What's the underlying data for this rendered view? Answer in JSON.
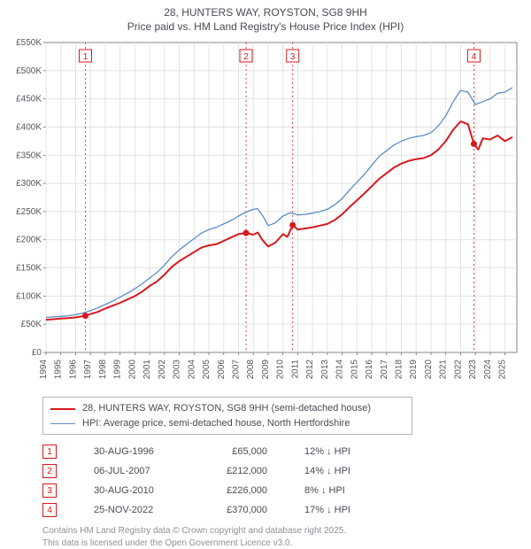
{
  "title_line1": "28, HUNTERS WAY, ROYSTON, SG8 9HH",
  "title_line2": "Price paid vs. HM Land Registry's House Price Index (HPI)",
  "chart": {
    "type": "line",
    "background_color": "#ffffff",
    "plot_bg": "#ffffff",
    "grid_color": "#e3e3e3",
    "axis_color": "#666670",
    "x_years": [
      1994,
      1995,
      1996,
      1997,
      1998,
      1999,
      2000,
      2001,
      2002,
      2003,
      2004,
      2005,
      2006,
      2007,
      2008,
      2009,
      2010,
      2011,
      2012,
      2013,
      2014,
      2015,
      2016,
      2017,
      2018,
      2019,
      2020,
      2021,
      2022,
      2023,
      2024,
      2025
    ],
    "ylim": [
      0,
      550000
    ],
    "ytick_step": 50000,
    "ytick_labels": [
      "£0",
      "£50K",
      "£100K",
      "£150K",
      "£200K",
      "£250K",
      "£300K",
      "£350K",
      "£400K",
      "£450K",
      "£500K",
      "£550K"
    ],
    "series": [
      {
        "name": "property",
        "label": "28, HUNTERS WAY, ROYSTON, SG8 9HH (semi-detached house)",
        "color": "#d7191c",
        "line_width": 2,
        "data": [
          [
            1994.0,
            58000
          ],
          [
            1994.5,
            59000
          ],
          [
            1995.0,
            60000
          ],
          [
            1995.5,
            61000
          ],
          [
            1996.0,
            62000
          ],
          [
            1996.66,
            65000
          ],
          [
            1997.0,
            68000
          ],
          [
            1997.5,
            72000
          ],
          [
            1998.0,
            78000
          ],
          [
            1998.5,
            83000
          ],
          [
            1999.0,
            88000
          ],
          [
            1999.5,
            94000
          ],
          [
            2000.0,
            100000
          ],
          [
            2000.5,
            108000
          ],
          [
            2001.0,
            118000
          ],
          [
            2001.5,
            126000
          ],
          [
            2002.0,
            138000
          ],
          [
            2002.5,
            152000
          ],
          [
            2003.0,
            162000
          ],
          [
            2003.5,
            170000
          ],
          [
            2004.0,
            178000
          ],
          [
            2004.5,
            186000
          ],
          [
            2005.0,
            190000
          ],
          [
            2005.5,
            192000
          ],
          [
            2006.0,
            198000
          ],
          [
            2006.5,
            204000
          ],
          [
            2007.0,
            210000
          ],
          [
            2007.51,
            212000
          ],
          [
            2008.0,
            209000
          ],
          [
            2008.3,
            213000
          ],
          [
            2008.6,
            200000
          ],
          [
            2009.0,
            188000
          ],
          [
            2009.5,
            195000
          ],
          [
            2010.0,
            210000
          ],
          [
            2010.3,
            205000
          ],
          [
            2010.66,
            226000
          ],
          [
            2011.0,
            218000
          ],
          [
            2011.5,
            220000
          ],
          [
            2012.0,
            222000
          ],
          [
            2012.5,
            225000
          ],
          [
            2013.0,
            228000
          ],
          [
            2013.5,
            235000
          ],
          [
            2014.0,
            245000
          ],
          [
            2014.5,
            258000
          ],
          [
            2015.0,
            270000
          ],
          [
            2015.5,
            282000
          ],
          [
            2016.0,
            295000
          ],
          [
            2016.5,
            308000
          ],
          [
            2017.0,
            318000
          ],
          [
            2017.5,
            328000
          ],
          [
            2018.0,
            335000
          ],
          [
            2018.5,
            340000
          ],
          [
            2019.0,
            343000
          ],
          [
            2019.5,
            345000
          ],
          [
            2020.0,
            350000
          ],
          [
            2020.5,
            360000
          ],
          [
            2021.0,
            375000
          ],
          [
            2021.5,
            395000
          ],
          [
            2022.0,
            410000
          ],
          [
            2022.5,
            405000
          ],
          [
            2022.9,
            370000
          ],
          [
            2023.2,
            360000
          ],
          [
            2023.5,
            380000
          ],
          [
            2024.0,
            378000
          ],
          [
            2024.5,
            385000
          ],
          [
            2025.0,
            375000
          ],
          [
            2025.5,
            382000
          ]
        ],
        "markers_at": [
          [
            1996.66,
            65000
          ],
          [
            2007.51,
            212000
          ],
          [
            2010.66,
            226000
          ],
          [
            2022.9,
            370000
          ]
        ]
      },
      {
        "name": "hpi",
        "label": "HPI: Average price, semi-detached house, North Hertfordshire",
        "color": "#5b8dc8",
        "line_width": 1.3,
        "data": [
          [
            1994.0,
            62000
          ],
          [
            1994.5,
            63000
          ],
          [
            1995.0,
            64000
          ],
          [
            1995.5,
            65000
          ],
          [
            1996.0,
            67000
          ],
          [
            1996.5,
            70000
          ],
          [
            1997.0,
            74000
          ],
          [
            1997.5,
            79000
          ],
          [
            1998.0,
            85000
          ],
          [
            1998.5,
            91000
          ],
          [
            1999.0,
            98000
          ],
          [
            1999.5,
            105000
          ],
          [
            2000.0,
            113000
          ],
          [
            2000.5,
            122000
          ],
          [
            2001.0,
            132000
          ],
          [
            2001.5,
            142000
          ],
          [
            2002.0,
            155000
          ],
          [
            2002.5,
            170000
          ],
          [
            2003.0,
            182000
          ],
          [
            2003.5,
            192000
          ],
          [
            2004.0,
            202000
          ],
          [
            2004.5,
            212000
          ],
          [
            2005.0,
            218000
          ],
          [
            2005.5,
            222000
          ],
          [
            2006.0,
            228000
          ],
          [
            2006.5,
            234000
          ],
          [
            2007.0,
            242000
          ],
          [
            2007.5,
            249000
          ],
          [
            2008.0,
            254000
          ],
          [
            2008.3,
            255000
          ],
          [
            2008.7,
            240000
          ],
          [
            2009.0,
            225000
          ],
          [
            2009.5,
            230000
          ],
          [
            2010.0,
            242000
          ],
          [
            2010.5,
            248000
          ],
          [
            2011.0,
            244000
          ],
          [
            2011.5,
            245000
          ],
          [
            2012.0,
            247000
          ],
          [
            2012.5,
            250000
          ],
          [
            2013.0,
            254000
          ],
          [
            2013.5,
            262000
          ],
          [
            2014.0,
            273000
          ],
          [
            2014.5,
            288000
          ],
          [
            2015.0,
            302000
          ],
          [
            2015.5,
            316000
          ],
          [
            2016.0,
            332000
          ],
          [
            2016.5,
            348000
          ],
          [
            2017.0,
            358000
          ],
          [
            2017.5,
            368000
          ],
          [
            2018.0,
            375000
          ],
          [
            2018.5,
            380000
          ],
          [
            2019.0,
            383000
          ],
          [
            2019.5,
            385000
          ],
          [
            2020.0,
            390000
          ],
          [
            2020.5,
            402000
          ],
          [
            2021.0,
            420000
          ],
          [
            2021.5,
            445000
          ],
          [
            2022.0,
            465000
          ],
          [
            2022.5,
            462000
          ],
          [
            2023.0,
            440000
          ],
          [
            2023.5,
            445000
          ],
          [
            2024.0,
            450000
          ],
          [
            2024.5,
            460000
          ],
          [
            2025.0,
            462000
          ],
          [
            2025.5,
            470000
          ]
        ]
      }
    ],
    "sale_markers": [
      {
        "n": 1,
        "x": 1996.66
      },
      {
        "n": 2,
        "x": 2007.51
      },
      {
        "n": 3,
        "x": 2010.66
      },
      {
        "n": 4,
        "x": 2022.9
      }
    ],
    "marker_line_color": "#d7191c",
    "marker_box_border": "#d7191c"
  },
  "sales": [
    {
      "n": 1,
      "date": "30-AUG-1996",
      "price": "£65,000",
      "diff": "12% ↓ HPI"
    },
    {
      "n": 2,
      "date": "06-JUL-2007",
      "price": "£212,000",
      "diff": "14% ↓ HPI"
    },
    {
      "n": 3,
      "date": "30-AUG-2010",
      "price": "£226,000",
      "diff": "8% ↓ HPI"
    },
    {
      "n": 4,
      "date": "25-NOV-2022",
      "price": "£370,000",
      "diff": "17% ↓ HPI"
    }
  ],
  "footer_line1": "Contains HM Land Registry data © Crown copyright and database right 2025.",
  "footer_line2": "This data is licensed under the Open Government Licence v3.0."
}
